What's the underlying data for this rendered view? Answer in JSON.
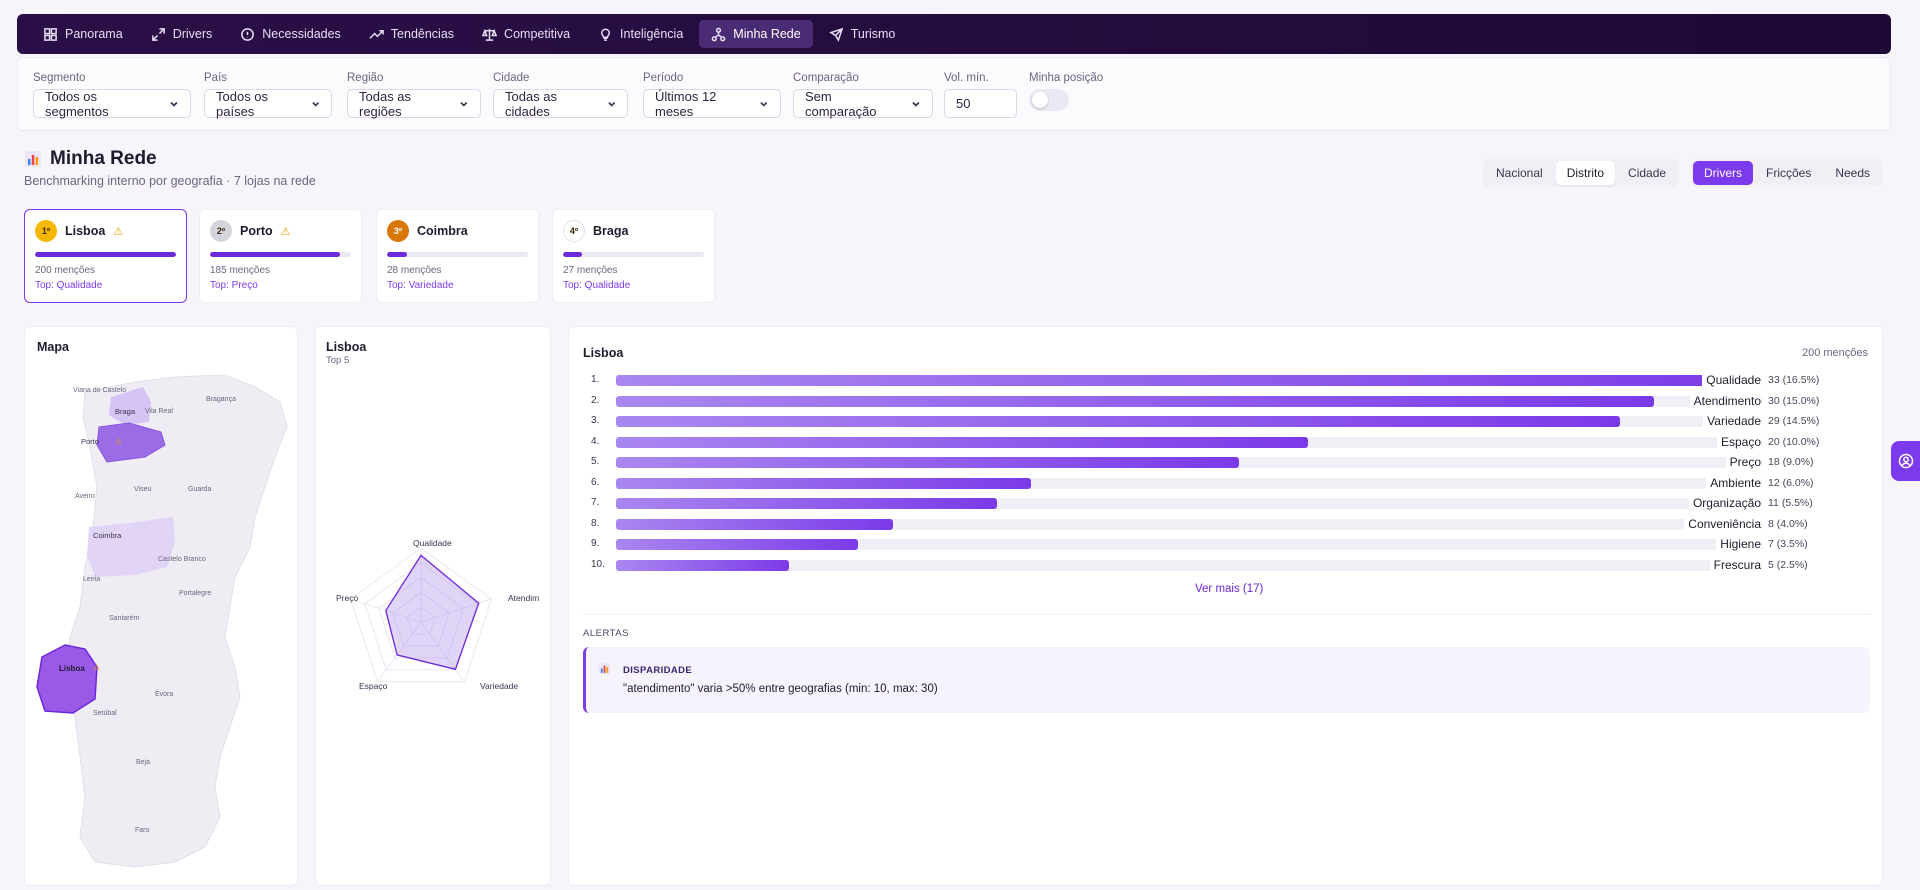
{
  "nav": {
    "items": [
      {
        "label": "Panorama",
        "icon": "grid-icon"
      },
      {
        "label": "Drivers",
        "icon": "expand-icon"
      },
      {
        "label": "Necessidades",
        "icon": "alert-circle-icon"
      },
      {
        "label": "Tendências",
        "icon": "trending-up-icon"
      },
      {
        "label": "Competitiva",
        "icon": "scale-icon"
      },
      {
        "label": "Inteligência",
        "icon": "lightbulb-icon"
      },
      {
        "label": "Minha Rede",
        "icon": "network-icon",
        "active": true
      },
      {
        "label": "Turismo",
        "icon": "plane-icon"
      }
    ]
  },
  "filters": {
    "segmento": {
      "label": "Segmento",
      "value": "Todos os segmentos"
    },
    "pais": {
      "label": "País",
      "value": "Todos os países"
    },
    "regiao": {
      "label": "Região",
      "value": "Todas as regiões"
    },
    "cidade": {
      "label": "Cidade",
      "value": "Todas as cidades"
    },
    "periodo": {
      "label": "Período",
      "value": "Últimos 12 meses"
    },
    "comparacao": {
      "label": "Comparação",
      "value": "Sem comparação"
    },
    "volmin": {
      "label": "Vol. mín.",
      "value": "50"
    },
    "posicao": {
      "label": "Minha posição",
      "on": false
    }
  },
  "page": {
    "icon": "bar-chart-icon",
    "title": "Minha Rede",
    "subtitle": "Benchmarking interno por geografia · 7 lojas na rede"
  },
  "geo_tabs": [
    "Nacional",
    "Distrito",
    "Cidade"
  ],
  "geo_active": "Distrito",
  "view_tabs": [
    "Drivers",
    "Fricções",
    "Needs"
  ],
  "view_active": "Drivers",
  "ranking": [
    {
      "rank": "1º",
      "name": "Lisboa",
      "warn": true,
      "mentions": "200 menções",
      "top": "Top: Qualidade",
      "fill": 1.0,
      "badge_color": "#f5b800",
      "selected": true
    },
    {
      "rank": "2º",
      "name": "Porto",
      "warn": true,
      "mentions": "185 menções",
      "top": "Top: Preço",
      "fill": 0.925,
      "badge_color": "#d4d4dc",
      "selected": false
    },
    {
      "rank": "3º",
      "name": "Coimbra",
      "warn": false,
      "mentions": "28 menções",
      "top": "Top: Variedade",
      "fill": 0.14,
      "badge_color": "#d97706",
      "selected": false
    },
    {
      "rank": "4º",
      "name": "Braga",
      "warn": false,
      "mentions": "27 menções",
      "top": "Top: Qualidade",
      "fill": 0.135,
      "badge_color": "#ffffff",
      "selected": false
    }
  ],
  "map": {
    "title": "Mapa",
    "labels": [
      "Viana do Castelo",
      "Braga",
      "Vila Real",
      "Bragança",
      "Porto",
      "Aveiro",
      "Viseu",
      "Guarda",
      "Coimbra",
      "Castelo Branco",
      "Leiria",
      "Portalegre",
      "Santarém",
      "Lisboa",
      "Setúbal",
      "Évora",
      "Beja",
      "Faro"
    ]
  },
  "radar": {
    "title": "Lisboa",
    "subtitle": "Top 5",
    "axes": [
      "Qualidade",
      "Atendim",
      "Variedade",
      "Espaço",
      "Preço"
    ],
    "values": [
      0.9,
      0.82,
      0.79,
      0.55,
      0.5
    ]
  },
  "drivers": {
    "title": "Lisboa",
    "total": "200 menções",
    "more": "Ver mais (17)",
    "items": [
      {
        "idx": "1.",
        "name": "Qualidade",
        "value": 33,
        "label": "33 (16.5%)"
      },
      {
        "idx": "2.",
        "name": "Atendimento",
        "value": 30,
        "label": "30 (15.0%)"
      },
      {
        "idx": "3.",
        "name": "Variedade",
        "value": 29,
        "label": "29 (14.5%)"
      },
      {
        "idx": "4.",
        "name": "Espaço",
        "value": 20,
        "label": "20 (10.0%)"
      },
      {
        "idx": "5.",
        "name": "Preço",
        "value": 18,
        "label": "18 (9.0%)"
      },
      {
        "idx": "6.",
        "name": "Ambiente",
        "value": 12,
        "label": "12 (6.0%)"
      },
      {
        "idx": "7.",
        "name": "Organização",
        "value": 11,
        "label": "11 (5.5%)"
      },
      {
        "idx": "8.",
        "name": "Conveniência",
        "value": 8,
        "label": "8 (4.0%)"
      },
      {
        "idx": "9.",
        "name": "Higiene",
        "value": 7,
        "label": "7 (3.5%)"
      },
      {
        "idx": "10.",
        "name": "Frescura",
        "value": 5,
        "label": "5 (2.5%)"
      }
    ]
  },
  "alerts": {
    "heading": "ALERTAS",
    "items": [
      {
        "icon": "bar-chart-icon",
        "type": "DISPARIDADE",
        "text": "\"atendimento\" varia >50% entre geografias (min: 10, max: 30)"
      }
    ]
  },
  "colors": {
    "accent": "#7c3aed",
    "nav_bg": "#250c40"
  }
}
